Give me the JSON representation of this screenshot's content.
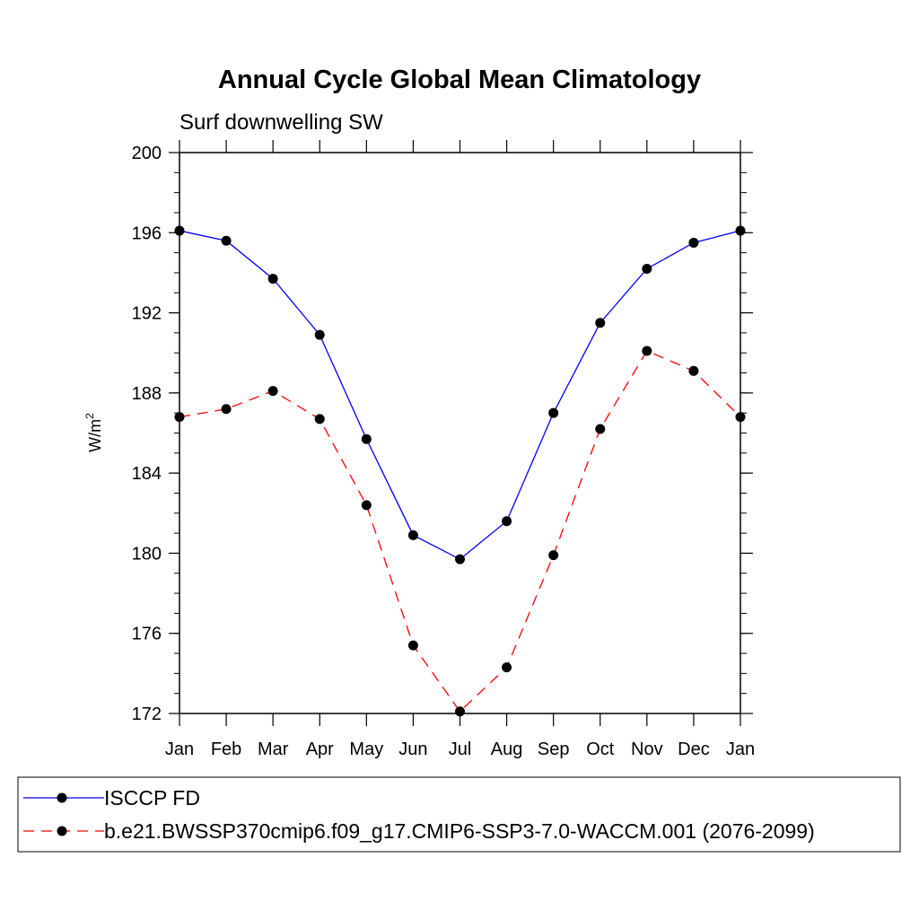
{
  "chart_data": {
    "type": "line",
    "title": "Annual Cycle Global Mean Climatology",
    "subtitle": "Surf downwelling SW",
    "ylabel": "W/m",
    "ylabel_superscript": "2",
    "xlabel": "",
    "categories": [
      "Jan",
      "Feb",
      "Mar",
      "Apr",
      "May",
      "Jun",
      "Jul",
      "Aug",
      "Sep",
      "Oct",
      "Nov",
      "Dec",
      "Jan"
    ],
    "ylim": [
      172,
      200
    ],
    "yticks": [
      "172",
      "176",
      "180",
      "184",
      "188",
      "192",
      "196",
      "200"
    ],
    "grid": false,
    "legend_placement": "bottom",
    "series": [
      {
        "name": "ISCCP FD",
        "color": "#0000ff",
        "dash": "solid",
        "marker": "filled-circle",
        "values": [
          196.1,
          195.6,
          193.7,
          190.9,
          185.7,
          180.9,
          179.7,
          181.6,
          187.0,
          191.5,
          194.2,
          195.5,
          196.1
        ]
      },
      {
        "name": "b.e21.BWSSP370cmip6.f09_g17.CMIP6-SSP3-7.0-WACCM.001 (2076-2099)",
        "color": "#ff0000",
        "dash": "dashed",
        "marker": "filled-circle",
        "values": [
          186.8,
          187.2,
          188.1,
          186.7,
          182.4,
          175.4,
          172.1,
          174.3,
          179.9,
          186.2,
          190.1,
          189.1,
          186.8
        ]
      }
    ]
  }
}
